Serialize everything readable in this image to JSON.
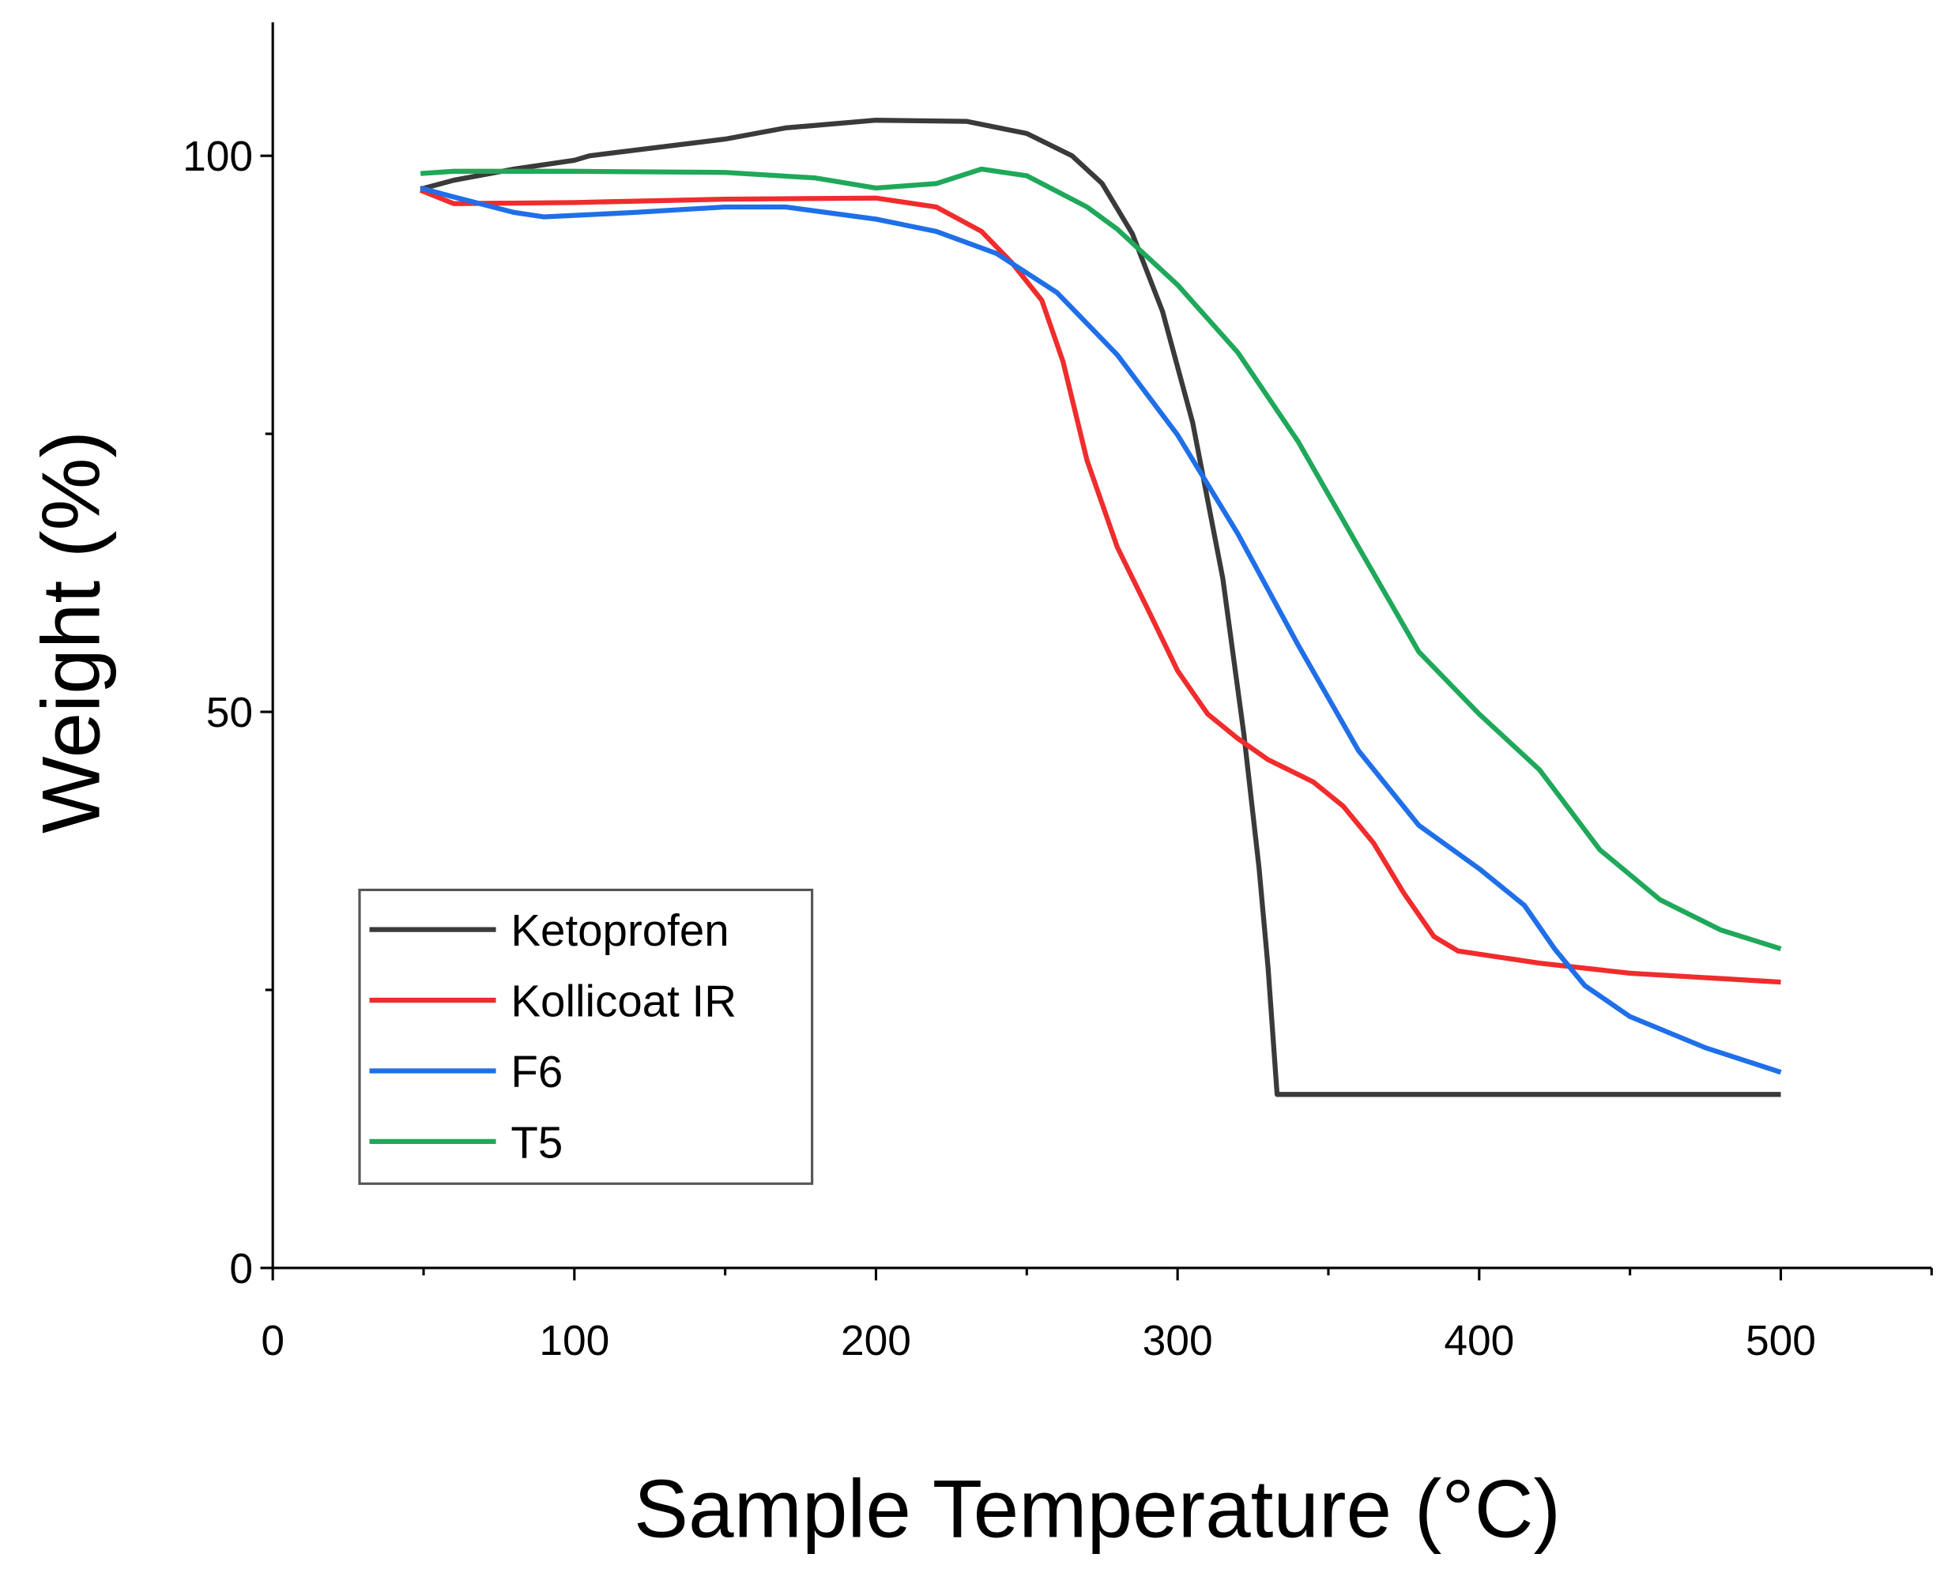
{
  "chart_data": {
    "type": "line",
    "x_label": "Sample Temperature (°C)",
    "y_label": "Weight (%)",
    "xlim": [
      0,
      550
    ],
    "ylim": [
      0,
      112
    ],
    "xticks": [
      0,
      100,
      200,
      300,
      400,
      500
    ],
    "xminor": [
      50,
      150,
      250,
      350,
      450,
      550
    ],
    "yticks": [
      0,
      50,
      100
    ],
    "yminor": [
      25,
      75
    ],
    "legend": "lower-left",
    "series": [
      {
        "name": "Ketoprofen",
        "color": "#3a3a3a",
        "x": [
          49,
          60,
          80,
          100,
          105,
          120,
          150,
          170,
          200,
          230,
          250,
          265,
          275,
          285,
          295,
          305,
          315,
          322,
          327,
          330,
          333,
          500
        ],
        "values": [
          97,
          97.8,
          98.8,
          99.6,
          100,
          100.5,
          101.5,
          102.5,
          103.2,
          103.1,
          102,
          100,
          97.5,
          93,
          86,
          76,
          62,
          48,
          36,
          27,
          15.6,
          15.6
        ]
      },
      {
        "name": "Kollicoat IR",
        "color": "#f02c2c",
        "x": [
          49,
          60,
          100,
          150,
          200,
          220,
          235,
          245,
          255,
          262,
          270,
          280,
          290,
          300,
          310,
          320,
          330,
          345,
          355,
          365,
          375,
          385,
          393,
          420,
          450,
          500
        ],
        "values": [
          96.9,
          95.7,
          95.8,
          96.1,
          96.2,
          95.4,
          93.2,
          90.4,
          87,
          81.5,
          72.6,
          64.8,
          59.3,
          53.7,
          49.8,
          47.6,
          45.7,
          43.7,
          41.5,
          38.2,
          33.7,
          29.8,
          28.5,
          27.4,
          26.5,
          25.7
        ]
      },
      {
        "name": "F6",
        "color": "#1f6fe8",
        "x": [
          49,
          60,
          80,
          90,
          120,
          150,
          170,
          200,
          220,
          240,
          260,
          280,
          300,
          320,
          340,
          360,
          380,
          400,
          415,
          425,
          435,
          450,
          475,
          500
        ],
        "values": [
          97.1,
          96.3,
          94.9,
          94.5,
          94.9,
          95.4,
          95.4,
          94.3,
          93.2,
          91.2,
          87.7,
          82.1,
          74.9,
          66,
          56,
          46.5,
          39.8,
          35.9,
          32.6,
          28.7,
          25.4,
          22.6,
          19.8,
          17.6
        ]
      },
      {
        "name": "T5",
        "color": "#1fa85a",
        "x": [
          49,
          60,
          100,
          150,
          180,
          200,
          220,
          235,
          250,
          270,
          280,
          300,
          320,
          340,
          360,
          380,
          400,
          420,
          440,
          460,
          480,
          500
        ],
        "values": [
          98.4,
          98.6,
          98.6,
          98.5,
          98,
          97.1,
          97.5,
          98.8,
          98.2,
          95.4,
          93.4,
          88.4,
          82.3,
          74.3,
          64.8,
          55.4,
          49.8,
          44.8,
          37.6,
          33.1,
          30.4,
          28.7
        ]
      }
    ]
  }
}
